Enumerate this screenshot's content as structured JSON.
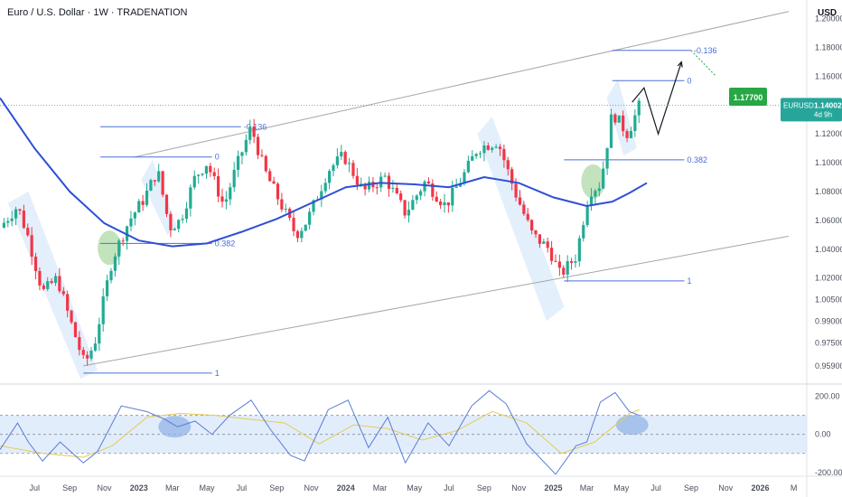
{
  "header": {
    "title": "Euro / U.S. Dollar · 1W · TRADENATION",
    "currency": "USD"
  },
  "colors": {
    "up": "#22ab94",
    "down": "#f23645",
    "ma": "#2d4fd8",
    "fib": "#4a6fd6",
    "channel": "#a6a6a6",
    "rsi": "#5b7bd5",
    "rsi_ma": "#e3cc55",
    "band": "#dbe9fb",
    "price_tag": "#26a69a",
    "target_tag": "#27a745"
  },
  "chart_data": [
    {
      "type": "candlestick",
      "title": "Euro / U.S. Dollar · 1W · TRADENATION",
      "ylim": [
        0.947,
        1.213
      ],
      "yticks": [
        "1.20000",
        "1.18000",
        "1.16000",
        "1.14000",
        "1.12000",
        "1.10000",
        "1.08000",
        "1.06000",
        "1.04000",
        "1.02000",
        "1.00500",
        "0.99000",
        "0.97500",
        "0.95900"
      ],
      "ytick_values": [
        1.2,
        1.18,
        1.16,
        1.14,
        1.12,
        1.1,
        1.08,
        1.06,
        1.04,
        1.02,
        1.005,
        0.99,
        0.975,
        0.959
      ],
      "xticks": [
        {
          "label": "Jul",
          "date": "2022-07-01"
        },
        {
          "label": "Sep",
          "date": "2022-09-01"
        },
        {
          "label": "Nov",
          "date": "2022-11-01"
        },
        {
          "label": "2023",
          "date": "2023-01-01"
        },
        {
          "label": "Mar",
          "date": "2023-03-01"
        },
        {
          "label": "May",
          "date": "2023-05-01"
        },
        {
          "label": "Jul",
          "date": "2023-07-01"
        },
        {
          "label": "Sep",
          "date": "2023-09-01"
        },
        {
          "label": "Nov",
          "date": "2023-11-01"
        },
        {
          "label": "2024",
          "date": "2024-01-01"
        },
        {
          "label": "Mar",
          "date": "2024-03-01"
        },
        {
          "label": "May",
          "date": "2024-05-01"
        },
        {
          "label": "Jul",
          "date": "2024-07-01"
        },
        {
          "label": "Sep",
          "date": "2024-09-01"
        },
        {
          "label": "Nov",
          "date": "2024-11-01"
        },
        {
          "label": "2025",
          "date": "2025-01-01"
        },
        {
          "label": "Mar",
          "date": "2025-03-01"
        },
        {
          "label": "May",
          "date": "2025-05-01"
        },
        {
          "label": "Jul",
          "date": "2025-07-01"
        },
        {
          "label": "Sep",
          "date": "2025-09-01"
        },
        {
          "label": "Nov",
          "date": "2025-11-01"
        },
        {
          "label": "2026",
          "date": "2026-01-01"
        },
        {
          "label": "M",
          "date": "2026-03-01"
        }
      ],
      "series": [
        {
          "symbol": "EURUSD",
          "type": "candlestick",
          "close_path": [
            {
              "date": "2022-05-01",
              "value": 1.055
            },
            {
              "date": "2022-06-01",
              "value": 1.07
            },
            {
              "date": "2022-06-20",
              "value": 1.048
            },
            {
              "date": "2022-07-15",
              "value": 1.01
            },
            {
              "date": "2022-08-10",
              "value": 1.02
            },
            {
              "date": "2022-08-25",
              "value": 1.0
            },
            {
              "date": "2022-09-27",
              "value": 0.96
            },
            {
              "date": "2022-10-15",
              "value": 0.975
            },
            {
              "date": "2022-11-15",
              "value": 1.033
            },
            {
              "date": "2022-12-15",
              "value": 1.06
            },
            {
              "date": "2023-01-10",
              "value": 1.075
            },
            {
              "date": "2023-02-03",
              "value": 1.095
            },
            {
              "date": "2023-02-24",
              "value": 1.055
            },
            {
              "date": "2023-03-15",
              "value": 1.06
            },
            {
              "date": "2023-04-10",
              "value": 1.09
            },
            {
              "date": "2023-05-01",
              "value": 1.1
            },
            {
              "date": "2023-05-31",
              "value": 1.07
            },
            {
              "date": "2023-06-20",
              "value": 1.095
            },
            {
              "date": "2023-07-18",
              "value": 1.125
            },
            {
              "date": "2023-08-10",
              "value": 1.095
            },
            {
              "date": "2023-09-10",
              "value": 1.07
            },
            {
              "date": "2023-10-05",
              "value": 1.05
            },
            {
              "date": "2023-10-25",
              "value": 1.06
            },
            {
              "date": "2023-12-01",
              "value": 1.095
            },
            {
              "date": "2023-12-28",
              "value": 1.105
            },
            {
              "date": "2024-02-01",
              "value": 1.08
            },
            {
              "date": "2024-03-10",
              "value": 1.09
            },
            {
              "date": "2024-04-15",
              "value": 1.065
            },
            {
              "date": "2024-05-20",
              "value": 1.087
            },
            {
              "date": "2024-06-25",
              "value": 1.07
            },
            {
              "date": "2024-08-01",
              "value": 1.095
            },
            {
              "date": "2024-08-20",
              "value": 1.11
            },
            {
              "date": "2024-09-25",
              "value": 1.115
            },
            {
              "date": "2024-10-25",
              "value": 1.08
            },
            {
              "date": "2024-11-25",
              "value": 1.05
            },
            {
              "date": "2024-12-25",
              "value": 1.04
            },
            {
              "date": "2025-01-13",
              "value": 1.022
            },
            {
              "date": "2025-02-10",
              "value": 1.035
            },
            {
              "date": "2025-03-05",
              "value": 1.08
            },
            {
              "date": "2025-03-25",
              "value": 1.085
            },
            {
              "date": "2025-04-15",
              "value": 1.135
            },
            {
              "date": "2025-05-12",
              "value": 1.12
            },
            {
              "date": "2025-06-02",
              "value": 1.14
            }
          ]
        },
        {
          "name": "",
          "type": "moving-average",
          "points": [
            {
              "date": "2022-05-01",
              "value": 1.145
            },
            {
              "date": "2022-07-01",
              "value": 1.11
            },
            {
              "date": "2022-09-01",
              "value": 1.08
            },
            {
              "date": "2022-11-01",
              "value": 1.058
            },
            {
              "date": "2023-01-01",
              "value": 1.046
            },
            {
              "date": "2023-03-01",
              "value": 1.042
            },
            {
              "date": "2023-05-01",
              "value": 1.044
            },
            {
              "date": "2023-07-01",
              "value": 1.052
            },
            {
              "date": "2023-09-01",
              "value": 1.061
            },
            {
              "date": "2023-11-01",
              "value": 1.072
            },
            {
              "date": "2024-01-01",
              "value": 1.083
            },
            {
              "date": "2024-03-01",
              "value": 1.086
            },
            {
              "date": "2024-05-01",
              "value": 1.085
            },
            {
              "date": "2024-07-01",
              "value": 1.083
            },
            {
              "date": "2024-09-01",
              "value": 1.09
            },
            {
              "date": "2024-11-01",
              "value": 1.086
            },
            {
              "date": "2025-01-01",
              "value": 1.076
            },
            {
              "date": "2025-03-01",
              "value": 1.07
            },
            {
              "date": "2025-04-15",
              "value": 1.073
            },
            {
              "date": "2025-05-15",
              "value": 1.079
            },
            {
              "date": "2025-06-15",
              "value": 1.086
            }
          ]
        }
      ],
      "channel_lines": [
        {
          "from": {
            "date": "2022-09-25",
            "value": 0.959
          },
          "to": {
            "date": "2026-02-20",
            "value": 1.049
          }
        },
        {
          "from": {
            "date": "2022-12-25",
            "value": 1.104
          },
          "to": {
            "date": "2026-02-20",
            "value": 1.205
          }
        }
      ],
      "fibonacci": [
        {
          "levels": [
            {
              "label": "-0.136",
              "value": 1.125
            },
            {
              "label": "0",
              "value": 1.104
            },
            {
              "label": "0.382",
              "value": 1.044
            },
            {
              "label": "1",
              "value": 0.954
            }
          ],
          "segments": [
            {
              "value": 1.125,
              "from": "2022-10-25",
              "to": "2023-06-30"
            },
            {
              "value": 1.104,
              "from": "2022-10-25",
              "to": "2023-05-10"
            },
            {
              "value": 1.044,
              "from": "2022-10-25",
              "to": "2023-05-10"
            },
            {
              "value": 0.954,
              "from": "2022-09-25",
              "to": "2023-05-10"
            }
          ]
        },
        {
          "levels": [
            {
              "label": "-0.136",
              "value": 1.178
            },
            {
              "label": "0",
              "value": 1.157
            },
            {
              "label": "0.382",
              "value": 1.102
            },
            {
              "label": "1",
              "value": 1.018
            }
          ],
          "segments": [
            {
              "value": 1.178,
              "from": "2025-04-15",
              "to": "2025-09-01"
            },
            {
              "value": 1.157,
              "from": "2025-04-15",
              "to": "2025-08-20"
            },
            {
              "value": 1.102,
              "from": "2025-01-20",
              "to": "2025-08-20"
            },
            {
              "value": 1.018,
              "from": "2025-01-20",
              "to": "2025-08-20"
            }
          ]
        }
      ],
      "projection": [
        {
          "date": "2025-05-20",
          "value": 1.142
        },
        {
          "date": "2025-06-10",
          "value": 1.152
        },
        {
          "date": "2025-07-05",
          "value": 1.12
        },
        {
          "date": "2025-08-15",
          "value": 1.17
        }
      ],
      "annotations": {
        "last_price": {
          "symbol": "EURUSD",
          "value": "1.14002",
          "countdown": "4d 9h",
          "price": 1.14
        },
        "target": {
          "value": "1.17700",
          "price": 1.177
        }
      },
      "highlight_zones": [
        "green circle Nov 2022 at 0.382",
        "green circle Mar 2025 at 0.382",
        "blue channel Jul–Sep 2022",
        "blue channel Aug 2024–Jan 2025",
        "blue channel Jan–Feb 2023",
        "blue channel Apr–May 2025"
      ],
      "grid": false
    },
    {
      "type": "line",
      "title": "",
      "ylim": [
        -220,
        260
      ],
      "yticks": [
        "200.00",
        "0.00",
        "-200.00"
      ],
      "ytick_values": [
        200,
        0,
        -200
      ],
      "band": [
        -100,
        100
      ],
      "series": [
        {
          "name": "",
          "role": "oscillator",
          "points": [
            {
              "date": "2022-05-01",
              "value": -80
            },
            {
              "date": "2022-06-01",
              "value": 60
            },
            {
              "date": "2022-06-20",
              "value": -40
            },
            {
              "date": "2022-07-15",
              "value": -140
            },
            {
              "date": "2022-08-15",
              "value": -40
            },
            {
              "date": "2022-09-25",
              "value": -150
            },
            {
              "date": "2022-10-20",
              "value": -90
            },
            {
              "date": "2022-12-01",
              "value": 150
            },
            {
              "date": "2023-01-15",
              "value": 120
            },
            {
              "date": "2023-02-15",
              "value": 80
            },
            {
              "date": "2023-03-10",
              "value": 40
            },
            {
              "date": "2023-04-10",
              "value": 70
            },
            {
              "date": "2023-05-10",
              "value": 0
            },
            {
              "date": "2023-06-10",
              "value": 100
            },
            {
              "date": "2023-07-18",
              "value": 180
            },
            {
              "date": "2023-08-20",
              "value": 30
            },
            {
              "date": "2023-09-25",
              "value": -110
            },
            {
              "date": "2023-10-20",
              "value": -140
            },
            {
              "date": "2023-12-01",
              "value": 130
            },
            {
              "date": "2024-01-05",
              "value": 180
            },
            {
              "date": "2024-02-10",
              "value": -70
            },
            {
              "date": "2024-03-15",
              "value": 90
            },
            {
              "date": "2024-04-15",
              "value": -150
            },
            {
              "date": "2024-05-25",
              "value": 60
            },
            {
              "date": "2024-07-01",
              "value": -60
            },
            {
              "date": "2024-08-10",
              "value": 150
            },
            {
              "date": "2024-09-10",
              "value": 230
            },
            {
              "date": "2024-10-10",
              "value": 160
            },
            {
              "date": "2024-11-15",
              "value": -50
            },
            {
              "date": "2025-01-05",
              "value": -210
            },
            {
              "date": "2025-02-10",
              "value": -60
            },
            {
              "date": "2025-03-01",
              "value": -40
            },
            {
              "date": "2025-03-25",
              "value": 170
            },
            {
              "date": "2025-04-20",
              "value": 220
            },
            {
              "date": "2025-05-15",
              "value": 120
            },
            {
              "date": "2025-06-02",
              "value": 100
            }
          ]
        },
        {
          "name": "",
          "role": "signal",
          "points": [
            {
              "date": "2022-05-01",
              "value": -60
            },
            {
              "date": "2022-07-15",
              "value": -100
            },
            {
              "date": "2022-09-25",
              "value": -120
            },
            {
              "date": "2022-11-15",
              "value": -60
            },
            {
              "date": "2023-01-15",
              "value": 90
            },
            {
              "date": "2023-03-15",
              "value": 110
            },
            {
              "date": "2023-05-15",
              "value": 100
            },
            {
              "date": "2023-07-15",
              "value": 80
            },
            {
              "date": "2023-09-15",
              "value": 60
            },
            {
              "date": "2023-11-15",
              "value": -50
            },
            {
              "date": "2024-01-15",
              "value": 50
            },
            {
              "date": "2024-03-15",
              "value": 30
            },
            {
              "date": "2024-05-15",
              "value": -30
            },
            {
              "date": "2024-07-15",
              "value": 20
            },
            {
              "date": "2024-09-15",
              "value": 120
            },
            {
              "date": "2024-11-15",
              "value": 60
            },
            {
              "date": "2025-01-15",
              "value": -100
            },
            {
              "date": "2025-03-15",
              "value": -40
            },
            {
              "date": "2025-05-15",
              "value": 110
            },
            {
              "date": "2025-06-02",
              "value": 130
            }
          ]
        }
      ],
      "highlight_zones": [
        "blue ellipse Feb–Mar 2023",
        "blue ellipse May–Jun 2025"
      ]
    }
  ]
}
